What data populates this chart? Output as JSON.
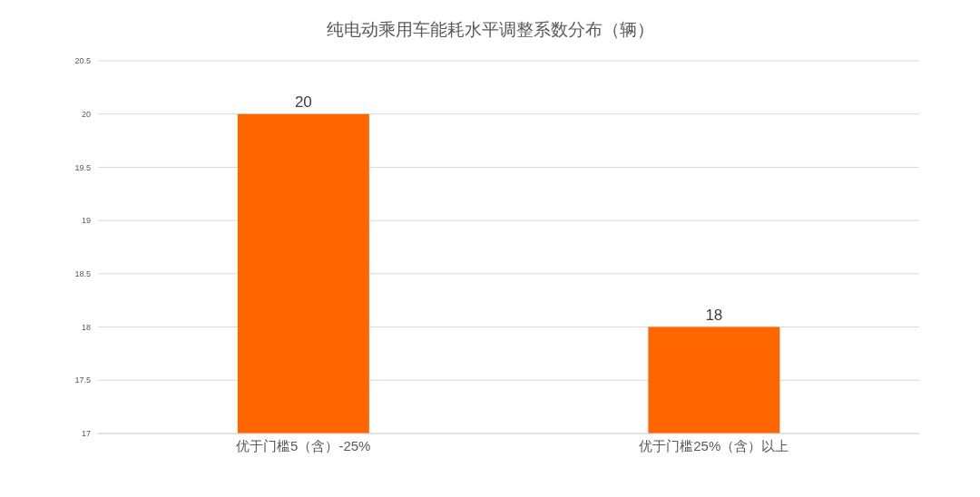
{
  "chart_data": {
    "type": "bar",
    "title": "纯电动乘用车能耗水平调整系数分布（辆）",
    "categories": [
      "优于门槛5（含）-25%",
      "优于门槛25%（含）以上"
    ],
    "values": [
      20,
      18
    ],
    "color": "#ff6600",
    "ylim": [
      17,
      20.5
    ],
    "yticks": [
      17,
      17.5,
      18,
      18.5,
      19,
      19.5,
      20,
      20.5
    ],
    "grid": "y",
    "data_labels": true
  }
}
